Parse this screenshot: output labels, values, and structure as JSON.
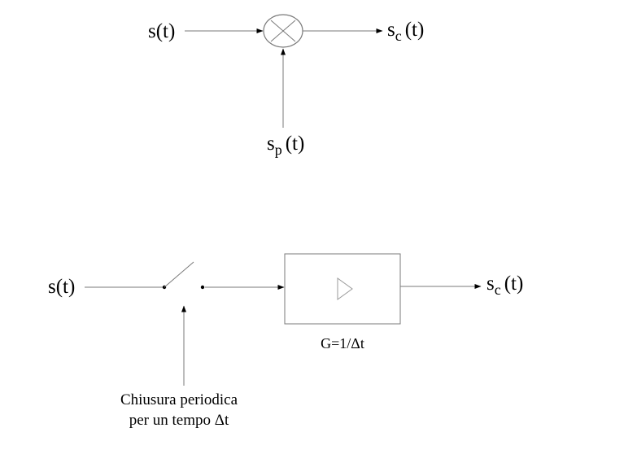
{
  "multiplier_diagram": {
    "input_main": "s",
    "input_arg": "(t)",
    "output_main": "s",
    "output_sub": "c",
    "output_arg": "(t)",
    "pulse_main": "s",
    "pulse_sub": "p",
    "pulse_arg": "(t)",
    "multiplier_icon": "circled-x-icon"
  },
  "switch_diagram": {
    "input_main": "s",
    "input_arg": "(t)",
    "output_main": "s",
    "output_sub": "c",
    "output_arg": "(t)",
    "gain_label": "G=1/Δt",
    "switch_note_line1": "Chiusura periodica",
    "switch_note_line2": "per un tempo Δt",
    "switch_icon": "switch-icon",
    "amplifier_icon": "triangle-amplifier-icon"
  }
}
